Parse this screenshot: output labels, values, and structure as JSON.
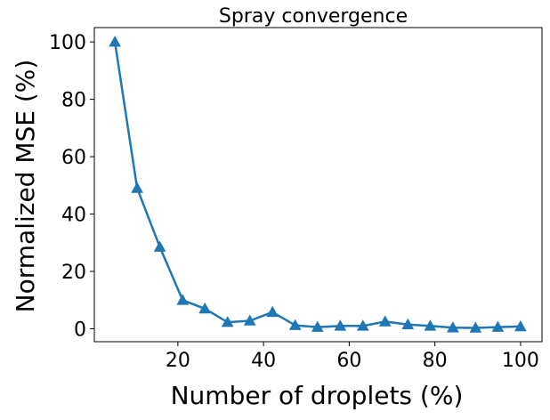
{
  "chart_data": {
    "type": "line",
    "title": "Spray convergence",
    "xlabel": "Number of droplets (%)",
    "ylabel": "Normalized MSE (%)",
    "xlim": [
      0.5,
      105
    ],
    "ylim": [
      -4.5,
      105
    ],
    "xticks": [
      20,
      40,
      60,
      80,
      100
    ],
    "yticks": [
      0,
      20,
      40,
      60,
      80,
      100
    ],
    "grid": false,
    "legend": "none",
    "marker": "triangle-up",
    "series": [
      {
        "color": "#1f77b4",
        "x": [
          5.3,
          10.5,
          15.8,
          21.1,
          26.3,
          31.6,
          36.8,
          42.1,
          47.4,
          52.6,
          57.9,
          63.2,
          68.4,
          73.7,
          78.9,
          84.2,
          89.5,
          94.7,
          100
        ],
        "y": [
          100,
          49,
          28.5,
          10,
          7,
          2.3,
          2.8,
          5.8,
          1.2,
          0.6,
          1.0,
          1.0,
          2.5,
          1.5,
          1.0,
          0.4,
          0.3,
          0.6,
          0.8
        ]
      }
    ]
  }
}
